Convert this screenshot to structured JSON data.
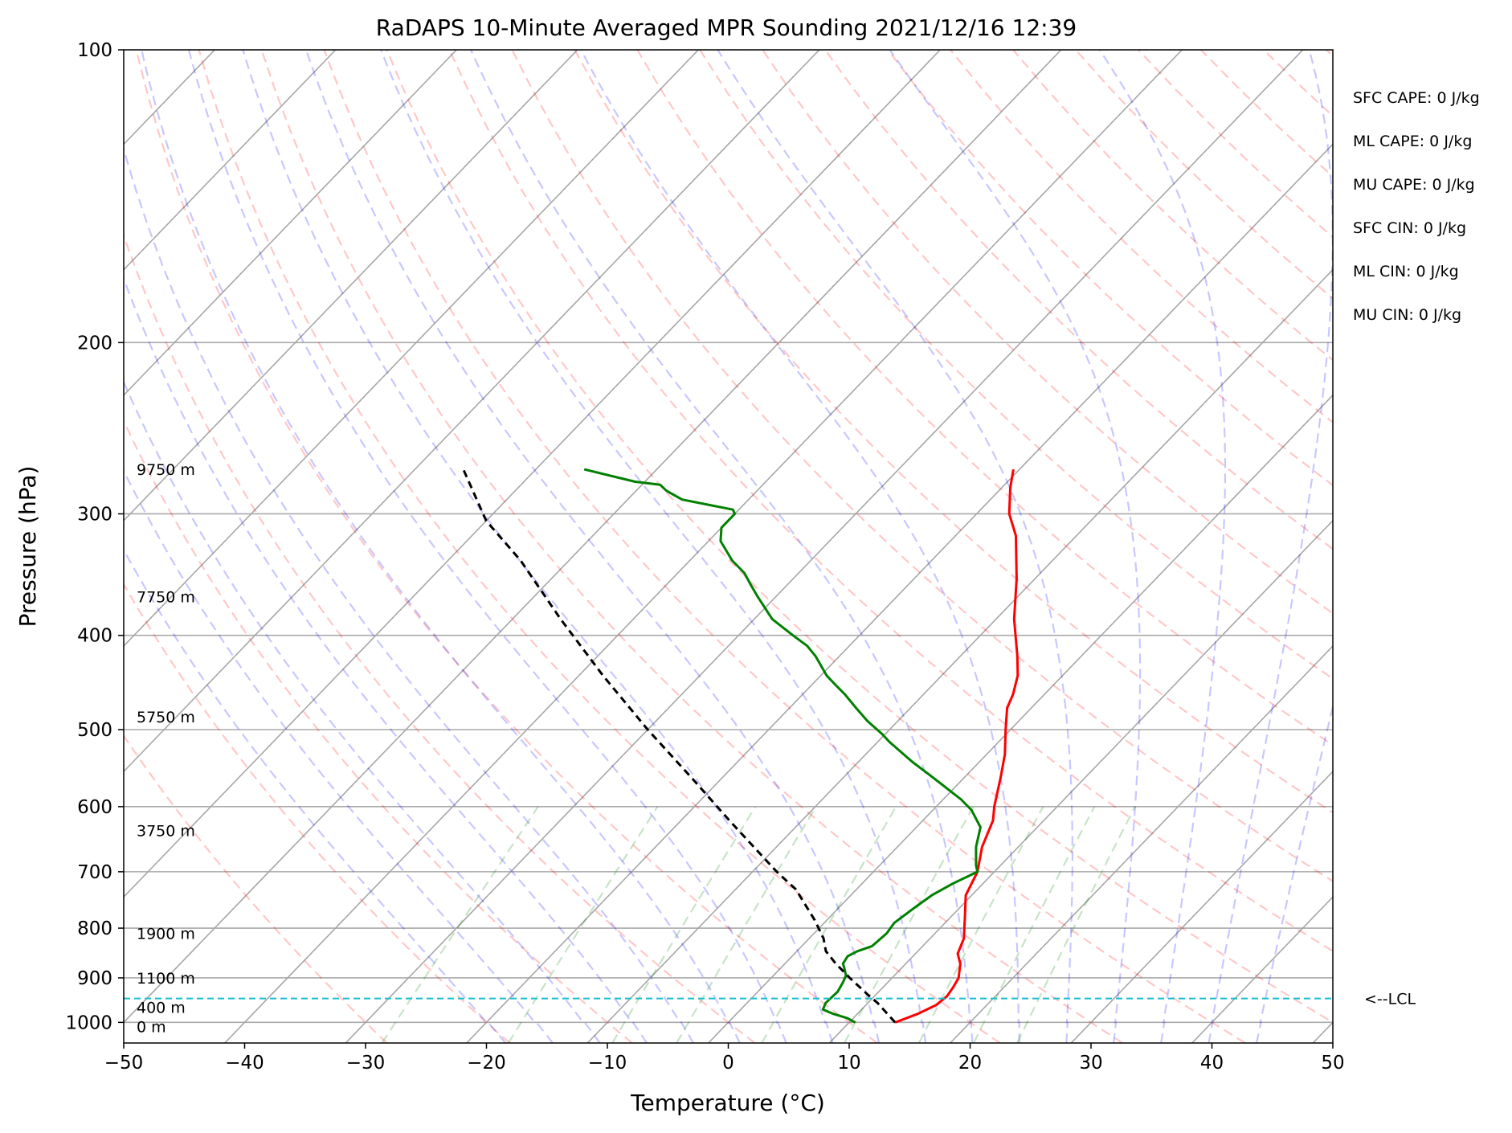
{
  "chart_data": {
    "type": "line",
    "subtype": "skew-t log-p",
    "title": "RaDAPS 10-Minute Averaged MPR Sounding 2021/12/16 12:39",
    "xlabel": "Temperature (°C)",
    "ylabel": "Pressure (hPa)",
    "xlim": [
      -50,
      50
    ],
    "ylim": [
      1050,
      100
    ],
    "y_scale": "log",
    "grid": true,
    "x_ticks": [
      "−50",
      "−40",
      "−30",
      "−20",
      "−10",
      "0",
      "10",
      "20",
      "30",
      "40",
      "50"
    ],
    "y_ticks": [
      "100",
      "200",
      "300",
      "400",
      "500",
      "600",
      "700",
      "800",
      "900",
      "1000"
    ],
    "height_labels": [
      {
        "text": "9750 m",
        "p": 270
      },
      {
        "text": "7750 m",
        "p": 365
      },
      {
        "text": "5750 m",
        "p": 485
      },
      {
        "text": "3750 m",
        "p": 635
      },
      {
        "text": "1900 m",
        "p": 810
      },
      {
        "text": "1100 m",
        "p": 900
      },
      {
        "text": "400 m",
        "p": 965
      },
      {
        "text": "0 m",
        "p": 1010
      }
    ],
    "stats": [
      "SFC CAPE: 0 J/kg",
      "ML CAPE: 0 J/kg",
      "MU CAPE: 0 J/kg",
      "SFC CIN: 0 J/kg",
      "ML CIN: 0 J/kg",
      "MU CIN: 0 J/kg"
    ],
    "lcl": {
      "label": "<--LCL",
      "p": 945
    },
    "series": [
      {
        "color": "#ff0000",
        "points": [
          [
            13.8,
            1000
          ],
          [
            15.0,
            980
          ],
          [
            15.8,
            960
          ],
          [
            16.0,
            940
          ],
          [
            15.8,
            920
          ],
          [
            15.5,
            900
          ],
          [
            14.5,
            870
          ],
          [
            13.5,
            850
          ],
          [
            12.8,
            820
          ],
          [
            11.2,
            780
          ],
          [
            9.5,
            740
          ],
          [
            8.6,
            700
          ],
          [
            7.0,
            660
          ],
          [
            5.8,
            620
          ],
          [
            4.8,
            600
          ],
          [
            3.0,
            560
          ],
          [
            1.5,
            530
          ],
          [
            -0.4,
            500
          ],
          [
            -2.0,
            475
          ],
          [
            -2.6,
            460
          ],
          [
            -3.7,
            440
          ],
          [
            -5.3,
            420
          ],
          [
            -8.5,
            385
          ],
          [
            -11.5,
            350
          ],
          [
            -15.0,
            316
          ],
          [
            -17.3,
            300
          ],
          [
            -19.3,
            282
          ],
          [
            -20.5,
            270
          ]
        ]
      },
      {
        "color": "#008000",
        "points": [
          [
            10.5,
            1000
          ],
          [
            9.5,
            990
          ],
          [
            8.0,
            980
          ],
          [
            6.8,
            970
          ],
          [
            6.5,
            955
          ],
          [
            6.6,
            930
          ],
          [
            6.3,
            910
          ],
          [
            6.0,
            895
          ],
          [
            5.3,
            880
          ],
          [
            4.8,
            870
          ],
          [
            4.6,
            855
          ],
          [
            5.0,
            845
          ],
          [
            5.8,
            835
          ],
          [
            6.0,
            810
          ],
          [
            5.8,
            790
          ],
          [
            6.3,
            760
          ],
          [
            6.7,
            740
          ],
          [
            7.5,
            720
          ],
          [
            8.6,
            700
          ],
          [
            8.0,
            690
          ],
          [
            6.5,
            660
          ],
          [
            5.3,
            630
          ],
          [
            3.2,
            605
          ],
          [
            1.5,
            590
          ],
          [
            -1.2,
            570
          ],
          [
            -3.3,
            555
          ],
          [
            -5.5,
            540
          ],
          [
            -9.0,
            515
          ],
          [
            -10.3,
            505
          ],
          [
            -12.5,
            490
          ],
          [
            -14.5,
            475
          ],
          [
            -16.5,
            460
          ],
          [
            -18.0,
            450
          ],
          [
            -19.5,
            440
          ],
          [
            -22.0,
            420
          ],
          [
            -23.5,
            410
          ],
          [
            -25.5,
            400
          ],
          [
            -28.5,
            385
          ],
          [
            -31.5,
            365
          ],
          [
            -33.0,
            355
          ],
          [
            -34.5,
            345
          ],
          [
            -36.5,
            335
          ],
          [
            -39.0,
            320
          ],
          [
            -40.0,
            310
          ],
          [
            -40.0,
            300
          ],
          [
            -40.5,
            297
          ],
          [
            -45.5,
            290
          ],
          [
            -47.5,
            284
          ],
          [
            -48.5,
            280
          ],
          [
            -50.8,
            278
          ],
          [
            -56.0,
            270
          ]
        ]
      },
      {
        "color": "#000000",
        "dashed": true,
        "points": [
          [
            13.8,
            1000
          ],
          [
            10.8,
            955
          ],
          [
            9.6,
            940
          ],
          [
            6.5,
            900
          ],
          [
            4.2,
            870
          ],
          [
            2.4,
            845
          ],
          [
            1.2,
            820
          ],
          [
            -1.0,
            785
          ],
          [
            -5.0,
            730
          ],
          [
            -8.0,
            700
          ],
          [
            -16.0,
            620
          ],
          [
            -22.0,
            565
          ],
          [
            -30.0,
            500
          ],
          [
            -38.0,
            440
          ],
          [
            -46.0,
            385
          ],
          [
            -54.0,
            335
          ],
          [
            -60.0,
            305
          ],
          [
            -66.0,
            270
          ]
        ]
      }
    ]
  }
}
